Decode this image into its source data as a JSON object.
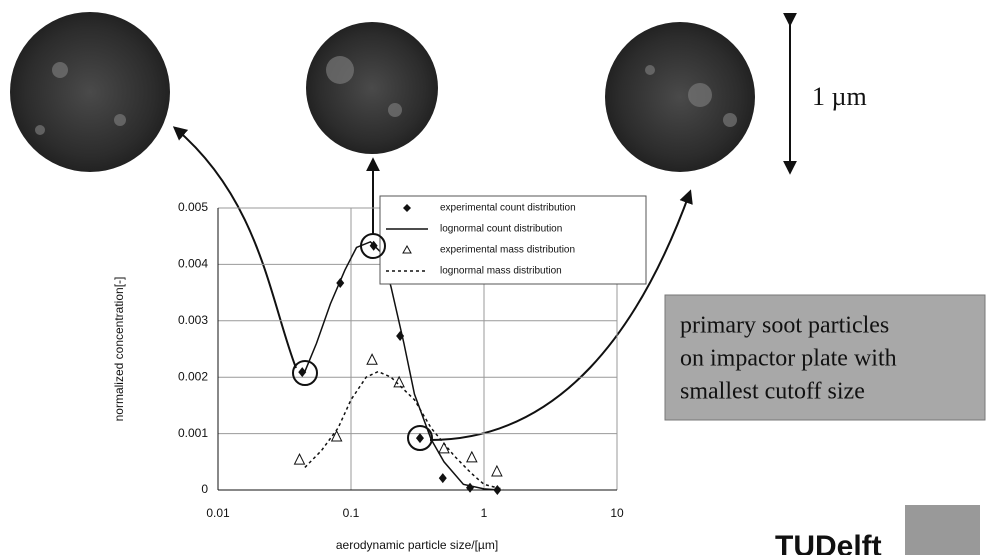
{
  "chart_data": {
    "type": "scatter",
    "xlabel": "aerodynamic particle size/[µm]",
    "ylabel": "normalized concentration[-]",
    "xscale": "log",
    "xlim": [
      0.01,
      10
    ],
    "xticks": [
      0.01,
      0.1,
      1,
      10
    ],
    "ylim": [
      0,
      0.005
    ],
    "yticks": [
      0,
      0.001,
      0.002,
      0.003,
      0.004,
      0.005
    ],
    "grid": true,
    "legend": "top-right",
    "series": [
      {
        "name": "experimental count distribution",
        "color": "#111111",
        "marker": "diamond",
        "x": [
          0.043,
          0.083,
          0.148,
          0.234,
          0.33,
          0.49,
          0.785,
          1.26
        ],
        "values": [
          0.00209,
          0.00367,
          0.00433,
          0.00273,
          0.00092,
          0.00021,
          4e-05,
          0
        ]
      },
      {
        "name": "lognormal count distribution",
        "color": "#111111",
        "line": "solid",
        "x": [
          0.045,
          0.055,
          0.07,
          0.09,
          0.11,
          0.14,
          0.17,
          0.2,
          0.25,
          0.3,
          0.4,
          0.5,
          0.7,
          1,
          1.3
        ],
        "values": [
          0.0021,
          0.0026,
          0.0033,
          0.0039,
          0.0043,
          0.0044,
          0.0042,
          0.0036,
          0.0026,
          0.0017,
          0.0009,
          0.0005,
          0.0001,
          2e-05,
          0
        ]
      },
      {
        "name": "experimental mass distribution",
        "color": "#111111",
        "marker": "triangle",
        "x": [
          0.041,
          0.078,
          0.144,
          0.23,
          0.5,
          0.81,
          1.25
        ],
        "values": [
          0.00053,
          0.00094,
          0.0023,
          0.0019,
          0.00073,
          0.00057,
          0.00032
        ]
      },
      {
        "name": "lognormal mass distribution",
        "color": "#111111",
        "line": "dashed",
        "x": [
          0.045,
          0.06,
          0.08,
          0.1,
          0.13,
          0.16,
          0.2,
          0.3,
          0.4,
          0.6,
          0.8,
          1.0,
          1.4
        ],
        "values": [
          0.0004,
          0.0007,
          0.0011,
          0.0016,
          0.002,
          0.0021,
          0.002,
          0.0016,
          0.0011,
          0.0006,
          0.0003,
          0.0001,
          1e-05
        ]
      }
    ],
    "annotations": {
      "scale": "1 µm",
      "box": [
        "primary soot particles",
        "on impactor plate with",
        "smallest cutoff size"
      ],
      "logo": "TUDelft"
    }
  }
}
